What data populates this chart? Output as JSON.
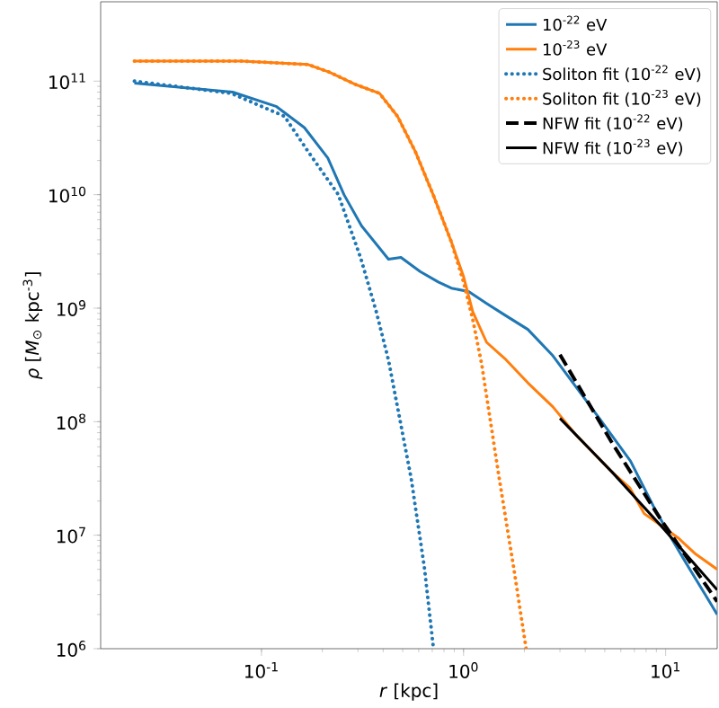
{
  "chart_data": {
    "type": "line",
    "xlabel": "*r* [kpc]",
    "ylabel": "*ρ* [*M*$_{⊙}$ kpc$^{-3}$]",
    "log": "xy",
    "legend": "top right",
    "marker": "none",
    "xlim": [
      0.016,
      18
    ],
    "ylim": [
      1000000,
      500000000000
    ],
    "xticks": [
      {
        "value": 0.1,
        "label": "10$^{-1}$"
      },
      {
        "value": 1,
        "label": "10$^{0}$"
      },
      {
        "value": 10,
        "label": "10$^{1}$"
      }
    ],
    "yticks": [
      {
        "value": 1000000,
        "label": "10$^{6}$"
      },
      {
        "value": 10000000,
        "label": "10$^{7}$"
      },
      {
        "value": 100000000,
        "label": "10$^{8}$"
      },
      {
        "value": 1000000000,
        "label": "10$^{9}$"
      },
      {
        "value": 10000000000,
        "label": "10$^{10}$"
      },
      {
        "value": 100000000000,
        "label": "10$^{11}$"
      }
    ],
    "series": [
      {
        "name": "10$^{-22}$ eV",
        "color": "#1f77b4",
        "line_style": "solid",
        "x": [
          0.0235,
          0.072,
          0.118,
          0.163,
          0.213,
          0.256,
          0.313,
          0.425,
          0.49,
          0.61,
          0.75,
          0.87,
          1.06,
          1.3,
          1.6,
          2.08,
          2.77,
          4.7,
          6.7,
          8.7,
          10.6,
          13,
          15.7,
          18
        ],
        "values": [
          96000000000,
          80000000000,
          60000000000,
          39000000000,
          21000000000,
          10000000000,
          5300000000,
          2700000000,
          2800000000,
          2100000000,
          1700000000,
          1500000000,
          1400000000,
          1100000000,
          870000000,
          650000000,
          380000000,
          107000000,
          45000000,
          18000000,
          9600000,
          5200000,
          3000000,
          2000000
        ]
      },
      {
        "name": "10$^{-23}$ eV",
        "color": "#ff7f0e",
        "line_style": "solid",
        "x": [
          0.0235,
          0.08,
          0.17,
          0.217,
          0.294,
          0.384,
          0.471,
          0.577,
          0.707,
          0.867,
          1.0,
          1.11,
          1.3,
          1.6,
          2.08,
          2.77,
          3.61,
          5.43,
          6.66,
          7.83,
          9.4,
          11.5,
          14.1,
          18
        ],
        "values": [
          150000000000,
          150000000000,
          140000000000,
          120000000000,
          93000000000,
          78000000000,
          49000000000,
          24000000000,
          10000000000,
          3900000000,
          1900000000,
          930000000,
          500000000,
          360000000,
          220000000,
          135000000,
          76000000,
          36000000,
          26000000,
          15500000,
          12300000,
          9500000,
          6800000,
          5000000
        ]
      },
      {
        "name": "Soliton fit (10$^{-22}$ eV)",
        "color": "#1f77b4",
        "line_style": "dotted",
        "x": [
          0.0235,
          0.071,
          0.13,
          0.17,
          0.24,
          0.31,
          0.37,
          0.425,
          0.55,
          0.64,
          0.71
        ],
        "values": [
          100000000000,
          78000000000,
          49000000000,
          24000000000,
          10000000000,
          2750000000,
          930000000,
          350000000,
          32000000,
          5200000,
          1000000
        ]
      },
      {
        "name": "Soliton fit (10$^{-23}$ eV)",
        "color": "#ff7f0e",
        "line_style": "dotted",
        "x": [
          0.0235,
          0.08,
          0.17,
          0.217,
          0.294,
          0.384,
          0.471,
          0.577,
          0.707,
          0.867,
          1.0,
          1.11,
          1.23,
          1.5,
          1.77,
          2.04
        ],
        "values": [
          150000000000,
          150000000000,
          140000000000,
          120000000000,
          93000000000,
          78000000000,
          49000000000,
          24000000000,
          10000000000,
          3900000000,
          1700000000,
          800000000,
          320000000,
          32000000,
          5200000,
          1000000
        ]
      },
      {
        "name": "NFW fit (10$^{-22}$ eV)",
        "color": "#000000",
        "line_style": "dashed",
        "x": [
          3,
          5.43,
          9.4,
          18
        ],
        "values": [
          390000000,
          65000000,
          14000000,
          2600000
        ]
      },
      {
        "name": "NFW fit (10$^{-23}$ eV)",
        "color": "#000000",
        "line_style": "solid",
        "x": [
          3,
          5.43,
          9.4,
          18
        ],
        "values": [
          107000000,
          36000000,
          12300000,
          3300000
        ]
      }
    ]
  }
}
